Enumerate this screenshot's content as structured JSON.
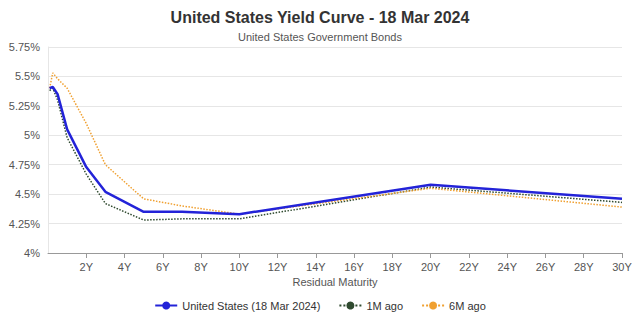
{
  "chart_data": {
    "type": "line",
    "title": "United States Yield Curve - 18 Mar 2024",
    "subtitle": "United States Government Bonds",
    "x_label": "Residual Maturity",
    "x": [
      0.083,
      0.25,
      0.5,
      1,
      2,
      3,
      5,
      7,
      10,
      20,
      30
    ],
    "series": [
      {
        "name": "United States (18 Mar 2024)",
        "color": "#2323d8",
        "line_style": "solid",
        "values": [
          5.4,
          5.41,
          5.35,
          5.05,
          4.73,
          4.52,
          4.35,
          4.35,
          4.33,
          4.58,
          4.46
        ]
      },
      {
        "name": "1M ago",
        "color": "#2f4a2f",
        "line_style": "dotted",
        "values": [
          5.38,
          5.4,
          5.3,
          4.98,
          4.67,
          4.42,
          4.28,
          4.29,
          4.29,
          4.56,
          4.43
        ]
      },
      {
        "name": "6M ago",
        "color": "#f0a030",
        "line_style": "dotted",
        "values": [
          5.4,
          5.53,
          5.48,
          5.4,
          5.1,
          4.75,
          4.46,
          4.4,
          4.33,
          4.55,
          4.39
        ]
      }
    ],
    "xlim": [
      0,
      30
    ],
    "xticks": [
      {
        "value": 2,
        "label": "2Y"
      },
      {
        "value": 4,
        "label": "4Y"
      },
      {
        "value": 6,
        "label": "6Y"
      },
      {
        "value": 8,
        "label": "8Y"
      },
      {
        "value": 10,
        "label": "10Y"
      },
      {
        "value": 12,
        "label": "12Y"
      },
      {
        "value": 14,
        "label": "14Y"
      },
      {
        "value": 16,
        "label": "16Y"
      },
      {
        "value": 18,
        "label": "18Y"
      },
      {
        "value": 20,
        "label": "20Y"
      },
      {
        "value": 22,
        "label": "22Y"
      },
      {
        "value": 24,
        "label": "24Y"
      },
      {
        "value": 26,
        "label": "26Y"
      },
      {
        "value": 28,
        "label": "28Y"
      },
      {
        "value": 30,
        "label": "30Y"
      }
    ],
    "ylim": [
      4,
      5.75
    ],
    "yticks": [
      {
        "value": 4,
        "label": "4%"
      },
      {
        "value": 4.25,
        "label": "4.25%"
      },
      {
        "value": 4.5,
        "label": "4.5%"
      },
      {
        "value": 4.75,
        "label": "4.75%"
      },
      {
        "value": 5,
        "label": "5%"
      },
      {
        "value": 5.25,
        "label": "5.25%"
      },
      {
        "value": 5.5,
        "label": "5.5%"
      },
      {
        "value": 5.75,
        "label": "5.75%"
      }
    ],
    "grid": true,
    "legend": "bottom",
    "marker": "none"
  }
}
